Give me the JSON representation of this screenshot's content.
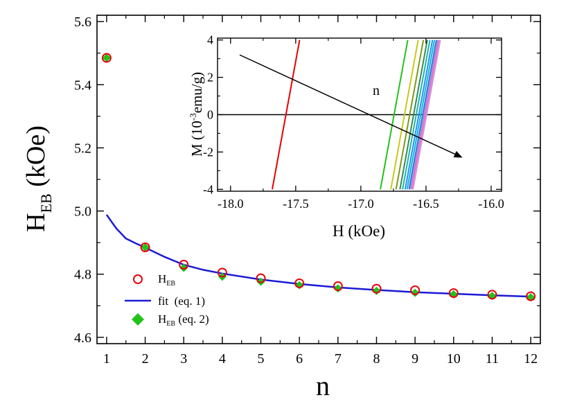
{
  "chart_data": [
    {
      "type": "scatter",
      "xlabel": "n",
      "ylabel": {
        "main": "H",
        "sub": "EB",
        "tail": " (kOe)"
      },
      "xlim": [
        0.75,
        12.25
      ],
      "ylim": [
        4.58,
        5.62
      ],
      "xticks": [
        1,
        2,
        3,
        4,
        5,
        6,
        7,
        8,
        9,
        10,
        11,
        12
      ],
      "xtick_labels": [
        "1",
        "2",
        "3",
        "4",
        "5",
        "6",
        "7",
        "8",
        "9",
        "10",
        "11",
        "12"
      ],
      "yticks": [
        4.6,
        4.8,
        5.0,
        5.2,
        5.4,
        5.6
      ],
      "ytick_labels": [
        "4.6",
        "4.8",
        "5.0",
        "5.2",
        "5.4",
        "5.6"
      ],
      "legend_position": "bottom-left",
      "series": [
        {
          "name": "H_EB",
          "legend": {
            "main": "H",
            "sub": "EB",
            "tail": ""
          },
          "marker": "open-circle",
          "color": "#e8000b",
          "x": [
            1,
            2,
            3,
            4,
            5,
            6,
            7,
            8,
            9,
            10,
            11,
            12
          ],
          "y": [
            5.485,
            4.885,
            4.83,
            4.805,
            4.787,
            4.771,
            4.762,
            4.754,
            4.749,
            4.74,
            4.735,
            4.73
          ]
        },
        {
          "name": "fit (eq. 1)",
          "legend": {
            "main": "fit",
            "sub": "",
            "tail": "  (eq. 1)"
          },
          "marker": "line",
          "color": "#1a1ad6",
          "x": [
            1.0,
            1.25,
            1.5,
            1.75,
            2.0,
            2.5,
            3.0,
            3.5,
            4.0,
            5.0,
            6.0,
            7.0,
            8.0,
            9.0,
            10.0,
            11.0,
            12.0
          ],
          "y": [
            4.988,
            4.945,
            4.913,
            4.898,
            4.884,
            4.855,
            4.83,
            4.814,
            4.802,
            4.783,
            4.769,
            4.758,
            4.75,
            4.743,
            4.738,
            4.733,
            4.729
          ]
        },
        {
          "name": "H_EB (eq. 2)",
          "legend": {
            "main": "H",
            "sub": "EB",
            "tail": " (eq. 2)"
          },
          "marker": "filled-diamond",
          "color": "#22c21a",
          "x": [
            1,
            2,
            3,
            4,
            5,
            6,
            7,
            8,
            9,
            10,
            11,
            12
          ],
          "y": [
            5.485,
            4.885,
            4.82,
            4.792,
            4.776,
            4.765,
            4.755,
            4.747,
            4.741,
            4.736,
            4.731,
            4.727
          ]
        }
      ]
    },
    {
      "type": "line",
      "xlabel": "H (kOe)",
      "ylabel": {
        "pre": "M (10",
        "sup": "-3",
        "post": "emu/g)"
      },
      "xlim": [
        -18.1,
        -15.92
      ],
      "ylim": [
        -4.1,
        4.1
      ],
      "xticks": [
        -18.0,
        -17.5,
        -17.0,
        -16.5,
        -16.0
      ],
      "xtick_labels": [
        "-18.0",
        "-17.5",
        "-17.0",
        "-16.5",
        "-16.0"
      ],
      "yticks": [
        -4,
        -2,
        0,
        2,
        4
      ],
      "ytick_labels": [
        "-4",
        "-2",
        "0",
        "2",
        "4"
      ],
      "annotation": "n",
      "annotation_color": "#8b1a3a",
      "zero_line_y": 0,
      "arrow": {
        "from": [
          -17.93,
          3.2
        ],
        "to": [
          -16.22,
          -2.3
        ]
      },
      "series": [
        {
          "color": "#e60000",
          "x": [
            -17.68,
            -17.47
          ],
          "y": [
            -4,
            4
          ]
        },
        {
          "color": "#22c21a",
          "x": [
            -16.85,
            -16.64
          ],
          "y": [
            -4,
            4
          ]
        },
        {
          "color": "#c8c81a",
          "x": [
            -16.77,
            -16.56
          ],
          "y": [
            -4,
            4
          ]
        },
        {
          "color": "#7a9a1a",
          "x": [
            -16.73,
            -16.52
          ],
          "y": [
            -4,
            4
          ]
        },
        {
          "color": "#2e8b57",
          "x": [
            -16.7,
            -16.49
          ],
          "y": [
            -4,
            4
          ]
        },
        {
          "color": "#20b2aa",
          "x": [
            -16.68,
            -16.47
          ],
          "y": [
            -4,
            4
          ]
        },
        {
          "color": "#1e90ff",
          "x": [
            -16.66,
            -16.45
          ],
          "y": [
            -4,
            4
          ]
        },
        {
          "color": "#00bcd4",
          "x": [
            -16.645,
            -16.435
          ],
          "y": [
            -4,
            4
          ]
        },
        {
          "color": "#4169e1",
          "x": [
            -16.63,
            -16.42
          ],
          "y": [
            -4,
            4
          ]
        },
        {
          "color": "#8a9ad6",
          "x": [
            -16.62,
            -16.41
          ],
          "y": [
            -4,
            4
          ]
        },
        {
          "color": "#ff66cc",
          "x": [
            -16.61,
            -16.4
          ],
          "y": [
            -4,
            4
          ]
        },
        {
          "color": "#c79adf",
          "x": [
            -16.6,
            -16.39
          ],
          "y": [
            -4,
            4
          ]
        }
      ]
    }
  ]
}
